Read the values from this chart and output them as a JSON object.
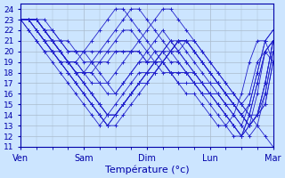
{
  "background_color": "#cce5ff",
  "plot_bg_color": "#cce5ff",
  "grid_color": "#aabbcc",
  "line_color": "#2222cc",
  "marker": "+",
  "xlabel": "Température (°c)",
  "xlim": [
    0,
    96
  ],
  "ylim": [
    11,
    24.5
  ],
  "yticks": [
    11,
    12,
    13,
    14,
    15,
    16,
    17,
    18,
    19,
    20,
    21,
    22,
    23,
    24
  ],
  "day_ticks": [
    0,
    24,
    48,
    72,
    96
  ],
  "day_labels": [
    "Ven",
    "Sam",
    "Dim",
    "Lun",
    "Mar"
  ],
  "series": [
    {
      "x": [
        0,
        3,
        6,
        9,
        12,
        15,
        18,
        21,
        24,
        27,
        30,
        33,
        36,
        39,
        42,
        45,
        48,
        51,
        54,
        57,
        60,
        63,
        66,
        69,
        72,
        75,
        78,
        81,
        84,
        87,
        90,
        93,
        96
      ],
      "y": [
        23,
        23,
        23,
        22,
        21,
        20,
        19,
        19,
        18,
        18,
        17,
        17,
        18,
        19,
        20,
        21,
        22,
        23,
        24,
        24,
        23,
        22,
        21,
        20,
        19,
        18,
        17,
        16,
        15,
        14,
        13,
        12,
        11
      ]
    },
    {
      "x": [
        0,
        3,
        6,
        9,
        12,
        15,
        18,
        21,
        24,
        27,
        30,
        33,
        36,
        39,
        42,
        45,
        48,
        51,
        54,
        57,
        60,
        63,
        66,
        69,
        72,
        75,
        78,
        81,
        84,
        87,
        90,
        93,
        96
      ],
      "y": [
        23,
        23,
        23,
        22,
        21,
        20,
        19,
        18,
        17,
        16,
        15,
        14,
        14,
        15,
        16,
        17,
        18,
        19,
        20,
        21,
        20,
        19,
        18,
        17,
        16,
        15,
        14,
        13,
        12,
        13,
        14,
        15,
        19
      ]
    },
    {
      "x": [
        0,
        3,
        6,
        9,
        12,
        15,
        18,
        21,
        24,
        27,
        30,
        33,
        36,
        39,
        42,
        45,
        48,
        51,
        54,
        57,
        60,
        63,
        66,
        69,
        72,
        75,
        78,
        81,
        84,
        87,
        90,
        93,
        96
      ],
      "y": [
        23,
        23,
        22,
        21,
        20,
        19,
        18,
        17,
        16,
        15,
        14,
        13,
        13,
        14,
        15,
        16,
        17,
        18,
        19,
        20,
        21,
        21,
        20,
        19,
        18,
        17,
        16,
        15,
        14,
        13,
        14,
        15,
        19
      ]
    },
    {
      "x": [
        0,
        3,
        6,
        9,
        12,
        15,
        18,
        21,
        24,
        27,
        30,
        33,
        36,
        39,
        42,
        45,
        48,
        51,
        54,
        57,
        60,
        63,
        66,
        69,
        72,
        75,
        78,
        81,
        84,
        87,
        90,
        93,
        96
      ],
      "y": [
        23,
        22,
        21,
        20,
        20,
        19,
        18,
        17,
        16,
        15,
        14,
        13,
        14,
        15,
        16,
        17,
        17,
        18,
        19,
        20,
        21,
        21,
        20,
        19,
        18,
        17,
        16,
        15,
        14,
        13,
        14,
        16,
        20
      ]
    },
    {
      "x": [
        0,
        3,
        6,
        9,
        12,
        15,
        18,
        21,
        24,
        27,
        30,
        33,
        36,
        39,
        42,
        45,
        48,
        51,
        54,
        57,
        60,
        63,
        66,
        69,
        72,
        75,
        78,
        81,
        84,
        87,
        90,
        93,
        96
      ],
      "y": [
        23,
        22,
        21,
        20,
        19,
        18,
        17,
        16,
        15,
        14,
        13,
        14,
        15,
        16,
        17,
        18,
        18,
        19,
        20,
        21,
        21,
        20,
        19,
        18,
        17,
        16,
        15,
        14,
        13,
        12,
        13,
        16,
        20
      ]
    },
    {
      "x": [
        3,
        6,
        9,
        12,
        15,
        18,
        21,
        24,
        27,
        30,
        33,
        36,
        39,
        42,
        45,
        48,
        51,
        54,
        57,
        60,
        63,
        66,
        69,
        72,
        75,
        78,
        81,
        84,
        87,
        90,
        93,
        96
      ],
      "y": [
        23,
        22,
        21,
        20,
        19,
        18,
        17,
        16,
        15,
        14,
        13,
        14,
        15,
        16,
        17,
        18,
        19,
        20,
        20,
        21,
        21,
        20,
        19,
        18,
        17,
        16,
        15,
        14,
        13,
        14,
        17,
        21
      ]
    },
    {
      "x": [
        6,
        9,
        12,
        15,
        18,
        21,
        24,
        27,
        30,
        33,
        36,
        39,
        42,
        45,
        48,
        51,
        54,
        57,
        60,
        63,
        66,
        69,
        72,
        75,
        78,
        81,
        84,
        87,
        90,
        93,
        96
      ],
      "y": [
        22,
        21,
        20,
        20,
        19,
        18,
        17,
        16,
        15,
        14,
        14,
        15,
        16,
        17,
        17,
        18,
        19,
        20,
        21,
        21,
        20,
        19,
        18,
        17,
        16,
        15,
        14,
        13,
        14,
        17,
        21
      ]
    },
    {
      "x": [
        9,
        12,
        15,
        18,
        21,
        24,
        27,
        30,
        33,
        36,
        39,
        42,
        45,
        48,
        51,
        54,
        57,
        60,
        63,
        66,
        69,
        72,
        75,
        78,
        81,
        84,
        87,
        90,
        93,
        96
      ],
      "y": [
        22,
        21,
        20,
        19,
        18,
        17,
        16,
        15,
        14,
        14,
        15,
        16,
        17,
        18,
        18,
        19,
        20,
        20,
        21,
        21,
        20,
        19,
        18,
        17,
        16,
        15,
        14,
        14,
        17,
        21
      ]
    },
    {
      "x": [
        0,
        3,
        6,
        9,
        12,
        15,
        18,
        21,
        24,
        27,
        30,
        33,
        36,
        39,
        42,
        45,
        48,
        51,
        54,
        57,
        60,
        63,
        66,
        69,
        72,
        75,
        78,
        81,
        84,
        87,
        90,
        93,
        96
      ],
      "y": [
        23,
        23,
        22,
        21,
        20,
        19,
        19,
        18,
        18,
        19,
        20,
        21,
        22,
        23,
        24,
        24,
        23,
        22,
        21,
        20,
        19,
        18,
        17,
        16,
        15,
        14,
        13,
        12,
        12,
        13,
        16,
        20,
        21
      ]
    },
    {
      "x": [
        0,
        3,
        6,
        9,
        12,
        15,
        18,
        21,
        24,
        27,
        30,
        33,
        36,
        39,
        42,
        45,
        48,
        51,
        54,
        57,
        60,
        63,
        66,
        69,
        72,
        75,
        78,
        81,
        84,
        87,
        90,
        93,
        96
      ],
      "y": [
        23,
        23,
        22,
        21,
        21,
        20,
        19,
        19,
        20,
        21,
        22,
        23,
        24,
        24,
        23,
        22,
        21,
        20,
        19,
        18,
        17,
        16,
        16,
        15,
        14,
        13,
        13,
        14,
        16,
        19,
        21,
        21,
        19
      ]
    },
    {
      "x": [
        0,
        3,
        6,
        9,
        12,
        15,
        18,
        21,
        24,
        27,
        30,
        33,
        36,
        39,
        42,
        45,
        48,
        51,
        54,
        57,
        60,
        63,
        66,
        69,
        72,
        75,
        78,
        81,
        84,
        87,
        90,
        93,
        96
      ],
      "y": [
        23,
        23,
        23,
        22,
        22,
        21,
        20,
        20,
        20,
        19,
        18,
        17,
        16,
        17,
        18,
        19,
        20,
        21,
        22,
        21,
        20,
        19,
        18,
        17,
        16,
        15,
        14,
        13,
        12,
        14,
        17,
        20,
        21
      ]
    },
    {
      "x": [
        0,
        3,
        6,
        9,
        12,
        15,
        18,
        21,
        24,
        27,
        30,
        33,
        36,
        39,
        42,
        45,
        48,
        51,
        54,
        57,
        60,
        63,
        66,
        69,
        72,
        75,
        78,
        81,
        84,
        87,
        90,
        93,
        96
      ],
      "y": [
        23,
        23,
        23,
        22,
        21,
        20,
        19,
        18,
        18,
        17,
        17,
        16,
        16,
        17,
        18,
        19,
        19,
        20,
        20,
        19,
        19,
        18,
        17,
        16,
        16,
        15,
        14,
        13,
        12,
        14,
        17,
        20,
        21
      ]
    },
    {
      "x": [
        0,
        3,
        6,
        9,
        12,
        15,
        18,
        21,
        24,
        27,
        30,
        33,
        36,
        39,
        42,
        45,
        48,
        51,
        54,
        57,
        60,
        63,
        66,
        69,
        72,
        75,
        78,
        81,
        84,
        87,
        90,
        93,
        96
      ],
      "y": [
        23,
        23,
        23,
        22,
        21,
        20,
        19,
        19,
        18,
        18,
        19,
        20,
        21,
        22,
        22,
        21,
        20,
        19,
        19,
        18,
        18,
        18,
        17,
        17,
        16,
        16,
        15,
        14,
        13,
        15,
        18,
        21,
        22
      ]
    },
    {
      "x": [
        0,
        3,
        6,
        9,
        12,
        15,
        18,
        21,
        24,
        27,
        30,
        33,
        36,
        39,
        42,
        45,
        48,
        51,
        54,
        57,
        60,
        63,
        66,
        69,
        72,
        75,
        78,
        81,
        84,
        87,
        90,
        93,
        96
      ],
      "y": [
        23,
        23,
        23,
        22,
        21,
        21,
        20,
        20,
        19,
        19,
        19,
        19,
        20,
        20,
        20,
        20,
        19,
        19,
        18,
        18,
        17,
        17,
        17,
        16,
        16,
        16,
        15,
        15,
        14,
        15,
        18,
        21,
        22
      ]
    },
    {
      "x": [
        0,
        3,
        6,
        9,
        12,
        15,
        18,
        21,
        24,
        27,
        30,
        33,
        36,
        39,
        42,
        45,
        48,
        51,
        54,
        57,
        60,
        63,
        66,
        69,
        72,
        75,
        78,
        81,
        84,
        87,
        90,
        93,
        96
      ],
      "y": [
        23,
        23,
        23,
        23,
        22,
        21,
        21,
        20,
        20,
        20,
        20,
        20,
        20,
        20,
        20,
        20,
        19,
        19,
        19,
        18,
        18,
        18,
        18,
        17,
        17,
        17,
        16,
        16,
        15,
        16,
        19,
        20,
        19
      ]
    }
  ]
}
